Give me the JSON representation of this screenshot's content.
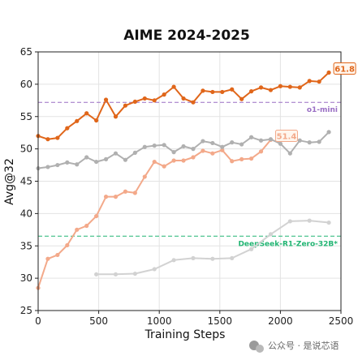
{
  "chart_data": {
    "type": "line",
    "title": "AIME 2024-2025",
    "xlabel": "Training Steps",
    "ylabel": "Avg@32",
    "xlim": [
      0,
      2500
    ],
    "ylim": [
      25,
      65
    ],
    "xticks": [
      0,
      500,
      1000,
      1500,
      2000,
      2500
    ],
    "yticks": [
      25,
      30,
      35,
      40,
      45,
      50,
      55,
      60,
      65
    ],
    "grid": true,
    "series": [
      {
        "color": "#e0661a",
        "end_label": "61.8",
        "x": [
          0,
          80,
          160,
          240,
          320,
          400,
          480,
          560,
          640,
          720,
          800,
          880,
          960,
          1040,
          1120,
          1200,
          1280,
          1360,
          1440,
          1520,
          1600,
          1680,
          1760,
          1840,
          1920,
          2000,
          2080,
          2160,
          2240,
          2320,
          2400
        ],
        "y": [
          52.0,
          51.5,
          51.7,
          53.2,
          54.3,
          55.5,
          54.4,
          57.6,
          55.0,
          56.7,
          57.3,
          57.8,
          57.5,
          58.4,
          59.6,
          57.8,
          57.2,
          59.0,
          58.8,
          58.8,
          59.2,
          57.7,
          58.9,
          59.5,
          59.1,
          59.7,
          59.6,
          59.5,
          60.5,
          60.4,
          61.8
        ]
      },
      {
        "color": "#b0b0b0",
        "x": [
          0,
          80,
          160,
          240,
          320,
          400,
          480,
          560,
          640,
          720,
          800,
          880,
          960,
          1040,
          1120,
          1200,
          1280,
          1360,
          1440,
          1520,
          1600,
          1680,
          1760,
          1840,
          1920,
          2000,
          2080,
          2160,
          2240,
          2320,
          2400
        ],
        "y": [
          47.0,
          47.2,
          47.5,
          47.9,
          47.6,
          48.7,
          48.0,
          48.4,
          49.3,
          48.3,
          49.4,
          50.3,
          50.5,
          50.6,
          49.5,
          50.4,
          50.0,
          51.2,
          50.9,
          50.3,
          51.0,
          50.7,
          51.8,
          51.3,
          51.5,
          50.8,
          49.3,
          51.3,
          51.0,
          51.1,
          52.6
        ]
      },
      {
        "color": "#f3a98a",
        "end_label": "51.4",
        "x": [
          0,
          80,
          160,
          240,
          320,
          400,
          480,
          560,
          640,
          720,
          800,
          880,
          960,
          1040,
          1120,
          1200,
          1280,
          1360,
          1440,
          1520,
          1600,
          1680,
          1760,
          1840,
          1920
        ],
        "y": [
          28.5,
          33.0,
          33.6,
          35.1,
          37.5,
          38.1,
          39.6,
          42.6,
          42.6,
          43.4,
          43.2,
          45.7,
          48.0,
          47.3,
          48.2,
          48.2,
          48.7,
          49.7,
          49.3,
          49.8,
          48.1,
          48.4,
          48.5,
          49.6,
          51.4
        ]
      },
      {
        "color": "#d2d2d2",
        "x": [
          480,
          640,
          800,
          960,
          1120,
          1280,
          1440,
          1600,
          1760,
          1920,
          2080,
          2240,
          2400
        ],
        "y": [
          30.6,
          30.6,
          30.7,
          31.4,
          32.8,
          33.1,
          33.0,
          33.1,
          34.5,
          36.8,
          38.8,
          38.9,
          38.6
        ]
      }
    ],
    "reference_lines": [
      {
        "label": "o1-mini",
        "y": 57.2,
        "color": "#9a6fc4"
      },
      {
        "label": "DeepSeek-R1-Zero-32B*",
        "y": 36.5,
        "color": "#22b573"
      }
    ]
  },
  "watermark": "公众号 · 是说芯语"
}
